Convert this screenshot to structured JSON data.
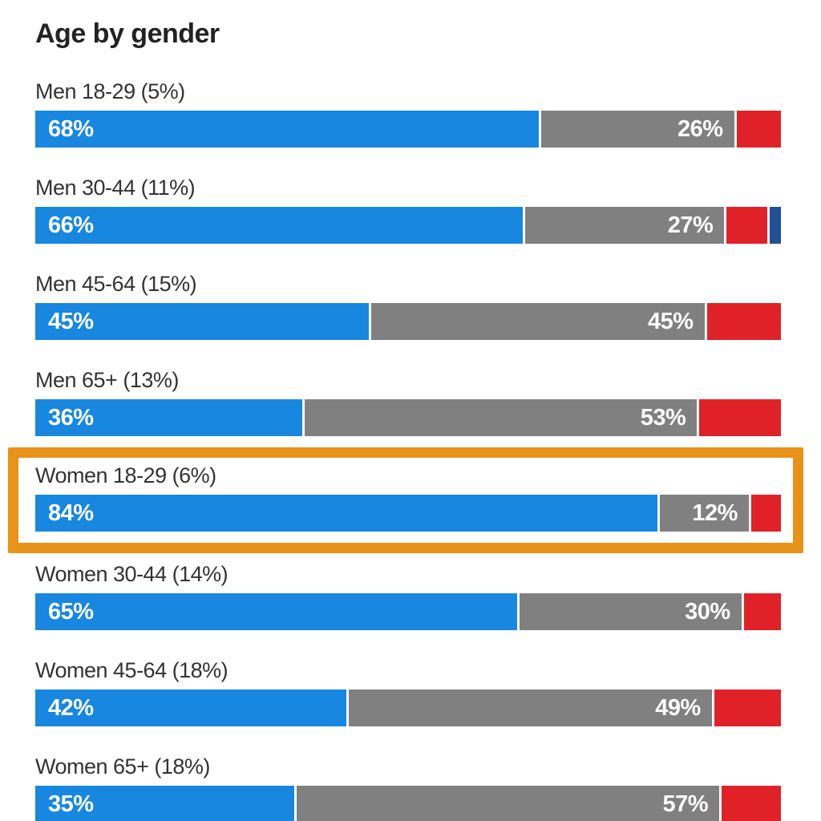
{
  "colors": {
    "blue": "#1787e0",
    "gray": "#808080",
    "red": "#e02228",
    "navy": "#234f96",
    "highlight_border": "#e8921a",
    "title_text": "#222222",
    "label_text": "#333333",
    "value_text": "#ffffff"
  },
  "chart_data": {
    "type": "bar",
    "orientation": "horizontal",
    "stacked": true,
    "title": "Age by gender",
    "unit": "%",
    "xlim": [
      0,
      100
    ],
    "grid": false,
    "legend": "none",
    "series_colors": [
      "blue",
      "gray",
      "red",
      "navy"
    ],
    "rows": [
      {
        "label": "Men 18-29 (5%)",
        "highlighted": false,
        "segments": [
          {
            "value": 68,
            "label": "68%",
            "color": "blue"
          },
          {
            "value": 26,
            "label": "26%",
            "color": "gray"
          },
          {
            "value": 6,
            "label": "",
            "color": "red"
          }
        ]
      },
      {
        "label": "Men 30-44 (11%)",
        "highlighted": false,
        "segments": [
          {
            "value": 66,
            "label": "66%",
            "color": "blue"
          },
          {
            "value": 27,
            "label": "27%",
            "color": "gray"
          },
          {
            "value": 5.5,
            "label": "",
            "color": "red"
          },
          {
            "value": 1.5,
            "label": "",
            "color": "navy"
          }
        ]
      },
      {
        "label": "Men 45-64 (15%)",
        "highlighted": false,
        "segments": [
          {
            "value": 45,
            "label": "45%",
            "color": "blue"
          },
          {
            "value": 45,
            "label": "45%",
            "color": "gray"
          },
          {
            "value": 10,
            "label": "",
            "color": "red"
          }
        ]
      },
      {
        "label": "Men 65+ (13%)",
        "highlighted": false,
        "segments": [
          {
            "value": 36,
            "label": "36%",
            "color": "blue"
          },
          {
            "value": 53,
            "label": "53%",
            "color": "gray"
          },
          {
            "value": 11,
            "label": "",
            "color": "red"
          }
        ]
      },
      {
        "label": "Women 18-29 (6%)",
        "highlighted": true,
        "segments": [
          {
            "value": 84,
            "label": "84%",
            "color": "blue"
          },
          {
            "value": 12,
            "label": "12%",
            "color": "gray"
          },
          {
            "value": 4,
            "label": "",
            "color": "red"
          }
        ]
      },
      {
        "label": "Women 30-44 (14%)",
        "highlighted": false,
        "segments": [
          {
            "value": 65,
            "label": "65%",
            "color": "blue"
          },
          {
            "value": 30,
            "label": "30%",
            "color": "gray"
          },
          {
            "value": 5,
            "label": "",
            "color": "red"
          }
        ]
      },
      {
        "label": "Women 45-64 (18%)",
        "highlighted": false,
        "segments": [
          {
            "value": 42,
            "label": "42%",
            "color": "blue"
          },
          {
            "value": 49,
            "label": "49%",
            "color": "gray"
          },
          {
            "value": 9,
            "label": "",
            "color": "red"
          }
        ]
      },
      {
        "label": "Women 65+ (18%)",
        "highlighted": false,
        "segments": [
          {
            "value": 35,
            "label": "35%",
            "color": "blue"
          },
          {
            "value": 57,
            "label": "57%",
            "color": "gray"
          },
          {
            "value": 8,
            "label": "",
            "color": "red"
          }
        ]
      }
    ]
  }
}
